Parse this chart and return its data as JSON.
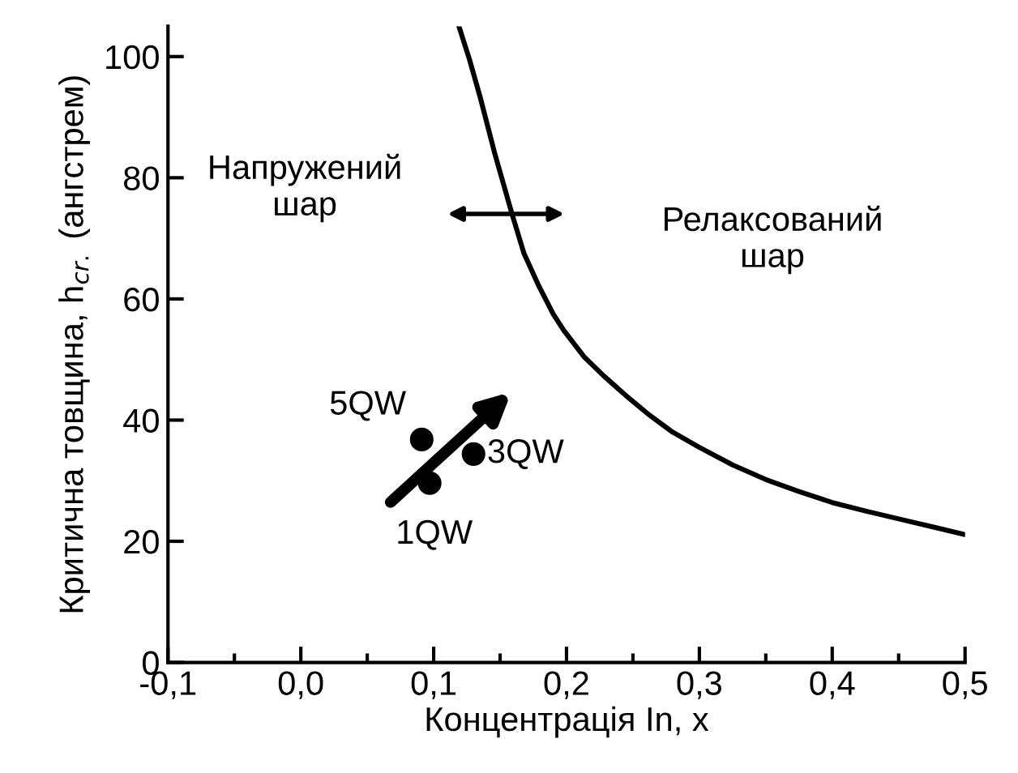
{
  "chart_data": {
    "type": "scatter",
    "xlabel": "Концентрація In, x",
    "ylabel": "Критична товщина, h$_{cr.}$ (ангстрем)",
    "xlim": [
      -0.1,
      0.5
    ],
    "xticks": [
      {
        "value": -0.1,
        "label": "-0,1"
      },
      {
        "value": 0.0,
        "label": "0,0"
      },
      {
        "value": 0.1,
        "label": "0,1"
      },
      {
        "value": 0.2,
        "label": "0,2"
      },
      {
        "value": 0.3,
        "label": "0,3"
      },
      {
        "value": 0.4,
        "label": "0,4"
      },
      {
        "value": 0.5,
        "label": "0,5"
      }
    ],
    "ylim": [
      0,
      105
    ],
    "yticks": [
      0,
      20,
      40,
      60,
      80,
      100
    ],
    "grid": false,
    "series": [
      {
        "type": "line",
        "color": "#000000",
        "x": [
          0.119,
          0.127,
          0.135,
          0.146,
          0.159,
          0.168,
          0.179,
          0.19,
          0.198,
          0.213,
          0.228,
          0.245,
          0.262,
          0.28,
          0.3,
          0.325,
          0.35,
          0.375,
          0.4,
          0.425,
          0.45,
          0.475,
          0.5
        ],
        "values": [
          105,
          99.5,
          93.3,
          84,
          74,
          67.5,
          62.2,
          57.5,
          54.8,
          50.5,
          47.3,
          44,
          40.9,
          38,
          35.5,
          32.6,
          30.2,
          28.2,
          26.4,
          25,
          23.7,
          22.4,
          21.1
        ]
      },
      {
        "color": "#000000",
        "marker": "circle",
        "x": [
          0.091,
          0.097,
          0.13
        ],
        "values": [
          36.8,
          29.6,
          34.4
        ]
      }
    ],
    "annotations": [
      {
        "text": "5QW",
        "x": 0.091,
        "y": 36.8
      },
      {
        "text": "1QW",
        "x": 0.097,
        "y": 29.6
      },
      {
        "text": "3QW",
        "x": 0.13,
        "y": 34.4
      },
      "Напружений\nшар",
      "Релаксований\nшар"
    ]
  }
}
